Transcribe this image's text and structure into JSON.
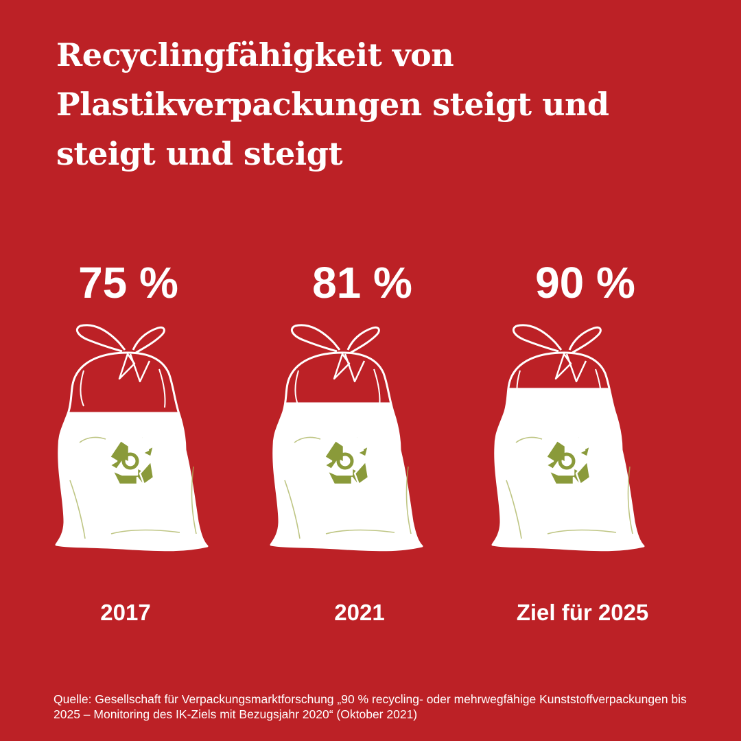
{
  "title": "Recyclingfähigkeit von Plastikverpackungen steigt und steigt und steigt",
  "source": "Quelle: Gesellschaft für Verpackungsmarktforschung „90 % recycling- oder mehrwegfähige Kunststoffverpackungen bis 2025 – Monitoring des IK-Ziels mit Bezugsjahr 2020“ (Oktober 2021)",
  "colors": {
    "background": "#bc2126",
    "bag": "#ffffff",
    "recycle_symbol": "#8a9a3a",
    "bag_lines": "#a8b25a"
  },
  "icons": {
    "bag": "garbage-bag-icon",
    "recycle": "recycle-icon"
  },
  "chart_data": {
    "type": "bar",
    "categories": [
      "2017",
      "2021",
      "Ziel für 2025"
    ],
    "values": [
      75,
      81,
      90
    ],
    "value_labels": [
      "75 %",
      "81 %",
      "90 %"
    ],
    "unit": "%",
    "ylim": [
      0,
      100
    ],
    "title": "Recyclingfähigkeit von Plastikverpackungen steigt und steigt und steigt",
    "xlabel": "",
    "ylabel": "",
    "grid": false,
    "legend": "none"
  }
}
